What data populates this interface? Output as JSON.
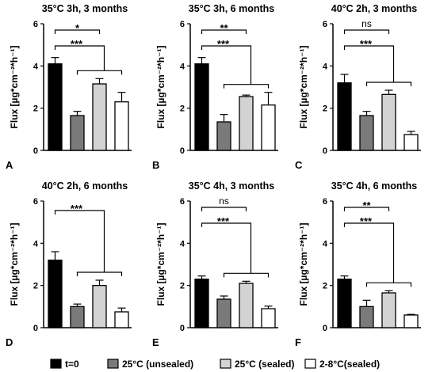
{
  "legend": [
    {
      "name": "t=0",
      "color": "#000000"
    },
    {
      "name": "25°C (unsealed)",
      "color": "#7a7a7a"
    },
    {
      "name": "25°C (sealed)",
      "color": "#d3d3d3"
    },
    {
      "name": "2-8°C(sealed)",
      "color": "#ffffff"
    }
  ],
  "chart_data": [
    {
      "type": "bar",
      "letter": "A",
      "title": "35°C 3h, 3 months",
      "ylabel": "Flux [µg*cm⁻²*h⁻¹]",
      "ylim": [
        0,
        6
      ],
      "yticks": [
        0,
        2,
        4,
        6
      ],
      "categories": [
        "t=0",
        "25°C (unsealed)",
        "25°C (sealed)",
        "2-8°C(sealed)"
      ],
      "values": [
        4.1,
        1.65,
        3.15,
        2.3
      ],
      "errors": [
        0.3,
        0.2,
        0.25,
        0.45
      ],
      "annotations": [
        {
          "label": "*",
          "from": 0,
          "to": 2
        },
        {
          "label": "***",
          "from": 0,
          "to": [
            1,
            3
          ]
        }
      ]
    },
    {
      "type": "bar",
      "letter": "B",
      "title": "35°C 3h, 6 months",
      "ylabel": "Flux [µg*cm⁻²*h⁻¹]",
      "ylim": [
        0,
        6
      ],
      "yticks": [
        0,
        2,
        4,
        6
      ],
      "categories": [
        "t=0",
        "25°C (unsealed)",
        "25°C (sealed)",
        "2-8°C(sealed)"
      ],
      "values": [
        4.1,
        1.35,
        2.55,
        2.15
      ],
      "errors": [
        0.3,
        0.35,
        0.07,
        0.6
      ],
      "annotations": [
        {
          "label": "**",
          "from": 0,
          "to": 2
        },
        {
          "label": "***",
          "from": 0,
          "to": [
            1,
            3
          ]
        }
      ]
    },
    {
      "type": "bar",
      "letter": "C",
      "title": "40°C 2h, 3 months",
      "ylabel": "Flux [µg*cm⁻²*h⁻¹]",
      "ylim": [
        0,
        6
      ],
      "yticks": [
        0,
        2,
        4,
        6
      ],
      "categories": [
        "t=0",
        "25°C (unsealed)",
        "25°C (sealed)",
        "2-8°C(sealed)"
      ],
      "values": [
        3.2,
        1.65,
        2.65,
        0.75
      ],
      "errors": [
        0.4,
        0.2,
        0.2,
        0.15
      ],
      "annotations": [
        {
          "label": "ns",
          "from": 0,
          "to": 2
        },
        {
          "label": "***",
          "from": 0,
          "to": [
            1,
            3
          ]
        }
      ]
    },
    {
      "type": "bar",
      "letter": "D",
      "title": "40°C 2h, 6 months",
      "ylabel": "Flux [µg*cm⁻²*h⁻¹]",
      "ylim": [
        0,
        6
      ],
      "yticks": [
        0,
        2,
        4,
        6
      ],
      "categories": [
        "t=0",
        "25°C (unsealed)",
        "25°C (sealed)",
        "2-8°C(sealed)"
      ],
      "values": [
        3.2,
        1.0,
        2.0,
        0.75
      ],
      "errors": [
        0.4,
        0.12,
        0.25,
        0.18
      ],
      "annotations": [
        {
          "label": "***",
          "from": 0,
          "to": [
            1,
            3
          ]
        }
      ]
    },
    {
      "type": "bar",
      "letter": "E",
      "title": "35°C 4h, 3 months",
      "ylabel": "Flux [µg*cm⁻²*h⁻¹]",
      "ylim": [
        0,
        6
      ],
      "yticks": [
        0,
        2,
        4,
        6
      ],
      "categories": [
        "t=0",
        "25°C (unsealed)",
        "25°C (sealed)",
        "2-8°C(sealed)"
      ],
      "values": [
        2.3,
        1.35,
        2.1,
        0.9
      ],
      "errors": [
        0.15,
        0.15,
        0.1,
        0.12
      ],
      "annotations": [
        {
          "label": "ns",
          "from": 0,
          "to": 2
        },
        {
          "label": "***",
          "from": 0,
          "to": [
            1,
            3
          ]
        }
      ]
    },
    {
      "type": "bar",
      "letter": "F",
      "title": "35°C 4h, 6 months",
      "ylabel": "Flux [µg*cm⁻²*h⁻¹]",
      "ylim": [
        0,
        6
      ],
      "yticks": [
        0,
        2,
        4,
        6
      ],
      "categories": [
        "t=0",
        "25°C (unsealed)",
        "25°C (sealed)",
        "2-8°C(sealed)"
      ],
      "values": [
        2.3,
        1.0,
        1.65,
        0.6
      ],
      "errors": [
        0.15,
        0.3,
        0.1,
        0.03
      ],
      "annotations": [
        {
          "label": "**",
          "from": 0,
          "to": 2
        },
        {
          "label": "***",
          "from": 0,
          "to": [
            1,
            3
          ]
        }
      ]
    }
  ]
}
